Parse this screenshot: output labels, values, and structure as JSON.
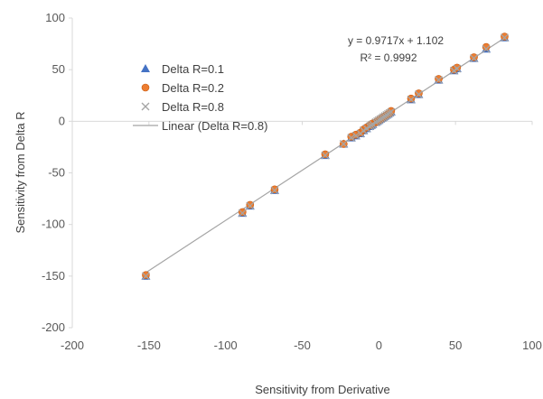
{
  "chart_data": {
    "type": "scatter",
    "xlabel": "Sensitivity from Derivative",
    "ylabel": "Sensitivity  from Delta R",
    "xlim": [
      -200,
      100
    ],
    "ylim": [
      -200,
      100
    ],
    "xticks": [
      -200,
      -150,
      -100,
      -50,
      0,
      50,
      100
    ],
    "yticks": [
      -200,
      -150,
      -100,
      -50,
      0,
      50,
      100
    ],
    "grid": "none",
    "legend_position": "upper-left",
    "series": [
      {
        "name": "Delta R=0.1",
        "marker": "triangle",
        "color": "#4472C4",
        "x": [
          -152,
          -89,
          -84,
          -68,
          -35,
          -23,
          -18,
          -15,
          -12,
          -10,
          -8,
          -6,
          -5,
          -4,
          -2,
          -1,
          0,
          1,
          2,
          3,
          4,
          5,
          6,
          7,
          8,
          21,
          26,
          39,
          49,
          51,
          62,
          70,
          82
        ],
        "y": [
          -150,
          -89,
          -82,
          -67,
          -33,
          -22,
          -16,
          -14,
          -12,
          -9,
          -7,
          -5,
          -4,
          -3,
          -1,
          0,
          1,
          2,
          3,
          4,
          5,
          6,
          7,
          8,
          9,
          21,
          26,
          40,
          49,
          51,
          61,
          70,
          81
        ]
      },
      {
        "name": "Delta R=0.2",
        "marker": "circle",
        "color": "#ED7D31",
        "x": [
          -152,
          -89,
          -84,
          -68,
          -35,
          -23,
          -18,
          -15,
          -12,
          -10,
          -8,
          -6,
          -5,
          -4,
          -2,
          -1,
          0,
          1,
          2,
          3,
          4,
          5,
          6,
          7,
          8,
          21,
          26,
          39,
          49,
          51,
          62,
          70,
          82
        ],
        "y": [
          -149,
          -88,
          -81,
          -66,
          -32,
          -22,
          -15,
          -13,
          -11,
          -8,
          -6,
          -4,
          -3,
          -2,
          -1,
          0,
          1,
          2,
          3,
          4,
          5,
          6,
          7,
          8,
          10,
          22,
          27,
          41,
          50,
          52,
          62,
          72,
          82
        ]
      },
      {
        "name": "Delta R=0.8",
        "marker": "x",
        "color": "#A5A5A5",
        "x": [
          -152,
          -89,
          -84,
          -68,
          -35,
          -23,
          -18,
          -15,
          -12,
          -10,
          -8,
          -6,
          -5,
          -4,
          -2,
          -1,
          0,
          1,
          2,
          3,
          4,
          5,
          6,
          7,
          8,
          21,
          26,
          39,
          49,
          51,
          62,
          70,
          82
        ],
        "y": [
          -150,
          -89,
          -82,
          -67,
          -33,
          -22,
          -16,
          -14,
          -12,
          -9,
          -7,
          -5,
          -4,
          -3,
          -1,
          0,
          1,
          2,
          3,
          4,
          5,
          6,
          7,
          8,
          9,
          21,
          26,
          40,
          49,
          51,
          61,
          70,
          81
        ]
      }
    ],
    "trendline": {
      "name": "Linear (Delta R=0.8)",
      "color": "#A5A5A5",
      "slope": 0.9717,
      "intercept": 1.102,
      "x_range": [
        -152,
        82
      ],
      "equation": "y = 0.9717x + 1.102",
      "r_squared": "R² = 0.9992"
    }
  }
}
